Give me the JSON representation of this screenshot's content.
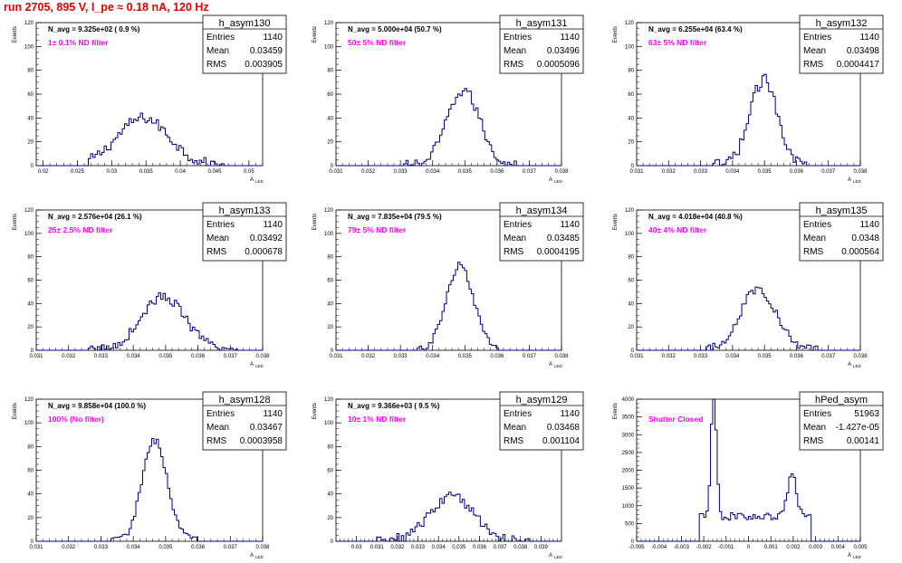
{
  "page": {
    "title": "run 2705,   895 V, I_pe ≈ 0.18 nA, 120 Hz"
  },
  "stat_labels": {
    "entries": "Entries",
    "mean": "Mean",
    "rms": "RMS"
  },
  "chart_data": [
    {
      "type": "histogram",
      "name": "h_asym130",
      "ylabel": "Events",
      "xlabel": "A",
      "xlabel_sub": "LED",
      "xlim": [
        0.019,
        0.052
      ],
      "ylim": [
        0,
        120
      ],
      "xticks": [
        "0.02",
        "0.025",
        "0.03",
        "0.035",
        "0.04",
        "0.045",
        "0.05"
      ],
      "yticks": [
        "0",
        "20",
        "40",
        "60",
        "80",
        "100",
        "120"
      ],
      "annotation": "N_avg = 9.325e+02 ( 0.9 %)",
      "filter": "1± 0.1% ND filter",
      "stats": {
        "entries": "1140",
        "mean": "0.03459",
        "rms": "0.003905"
      },
      "mean": 0.0346,
      "sigma": 0.0038,
      "peak": 40,
      "wobble": 9,
      "xmin": 0.0265,
      "xmax": 0.0465
    },
    {
      "type": "histogram",
      "name": "h_asym131",
      "ylabel": "Events",
      "xlabel": "A",
      "xlabel_sub": "LED",
      "xlim": [
        0.031,
        0.038
      ],
      "ylim": [
        0,
        120
      ],
      "xticks": [
        "0.031",
        "0.032",
        "0.033",
        "0.034",
        "0.035",
        "0.036",
        "0.037",
        "0.038"
      ],
      "yticks": [
        "0",
        "20",
        "40",
        "60",
        "80",
        "100",
        "120"
      ],
      "annotation": "N_avg = 5.000e+04 (50.7 %)",
      "filter": "50± 5% ND filter",
      "stats": {
        "entries": "1140",
        "mean": "0.03496",
        "rms": "0.0005096"
      },
      "mean": 0.03496,
      "sigma": 0.00051,
      "peak": 63,
      "wobble": 9,
      "xmin": 0.0331,
      "xmax": 0.0368
    },
    {
      "type": "histogram",
      "name": "h_asym132",
      "ylabel": "Events",
      "xlabel": "A",
      "xlabel_sub": "LED",
      "xlim": [
        0.031,
        0.038
      ],
      "ylim": [
        0,
        120
      ],
      "xticks": [
        "0.031",
        "0.032",
        "0.033",
        "0.034",
        "0.035",
        "0.036",
        "0.037",
        "0.038"
      ],
      "yticks": [
        "0",
        "20",
        "40",
        "60",
        "80",
        "100",
        "120"
      ],
      "annotation": "N_avg = 6.255e+04 (63.4 %)",
      "filter": "63± 5% ND filter",
      "stats": {
        "entries": "1140",
        "mean": "0.03498",
        "rms": "0.0004417"
      },
      "mean": 0.03498,
      "sigma": 0.00044,
      "peak": 72,
      "wobble": 10,
      "xmin": 0.0334,
      "xmax": 0.0366
    },
    {
      "type": "histogram",
      "name": "h_asym133",
      "ylabel": "Events",
      "xlabel": "A",
      "xlabel_sub": "LED",
      "xlim": [
        0.031,
        0.038
      ],
      "ylim": [
        0,
        120
      ],
      "xticks": [
        "0.031",
        "0.032",
        "0.033",
        "0.034",
        "0.035",
        "0.036",
        "0.037",
        "0.038"
      ],
      "yticks": [
        "0",
        "20",
        "40",
        "60",
        "80",
        "100",
        "120"
      ],
      "annotation": "N_avg = 2.576e+04 (26.1 %)",
      "filter": "25± 2.5% ND filter",
      "stats": {
        "entries": "1140",
        "mean": "0.03492",
        "rms": "0.000678"
      },
      "mean": 0.03492,
      "sigma": 0.00068,
      "peak": 46,
      "wobble": 8,
      "xmin": 0.0326,
      "xmax": 0.0372
    },
    {
      "type": "histogram",
      "name": "h_asym134",
      "ylabel": "Events",
      "xlabel": "A",
      "xlabel_sub": "LED",
      "xlim": [
        0.031,
        0.038
      ],
      "ylim": [
        0,
        120
      ],
      "xticks": [
        "0.031",
        "0.032",
        "0.033",
        "0.034",
        "0.035",
        "0.036",
        "0.037",
        "0.038"
      ],
      "yticks": [
        "0",
        "20",
        "40",
        "60",
        "80",
        "100",
        "120"
      ],
      "annotation": "N_avg = 7.835e+04 (79.5 %)",
      "filter": "79± 5% ND filter",
      "stats": {
        "entries": "1140",
        "mean": "0.03485",
        "rms": "0.0004195"
      },
      "mean": 0.03485,
      "sigma": 0.00042,
      "peak": 73,
      "wobble": 6,
      "xmin": 0.0335,
      "xmax": 0.0362
    },
    {
      "type": "histogram",
      "name": "h_asym135",
      "ylabel": "Events",
      "xlabel": "A",
      "xlabel_sub": "LED",
      "xlim": [
        0.031,
        0.038
      ],
      "ylim": [
        0,
        120
      ],
      "xticks": [
        "0.031",
        "0.032",
        "0.033",
        "0.034",
        "0.035",
        "0.036",
        "0.037",
        "0.038"
      ],
      "yticks": [
        "0",
        "20",
        "40",
        "60",
        "80",
        "100",
        "120"
      ],
      "annotation": "N_avg = 4.018e+04 (40.8 %)",
      "filter": "40± 4% ND filter",
      "stats": {
        "entries": "1140",
        "mean": "0.0348",
        "rms": "0.000564"
      },
      "mean": 0.0348,
      "sigma": 0.00056,
      "peak": 53,
      "wobble": 8,
      "xmin": 0.0332,
      "xmax": 0.0368
    },
    {
      "type": "histogram",
      "name": "h_asym128",
      "ylabel": "Events",
      "xlabel": "A",
      "xlabel_sub": "LED",
      "xlim": [
        0.031,
        0.038
      ],
      "ylim": [
        0,
        120
      ],
      "xticks": [
        "0.031",
        "0.032",
        "0.033",
        "0.034",
        "0.035",
        "0.036",
        "0.037",
        "0.038"
      ],
      "yticks": [
        "0",
        "20",
        "40",
        "60",
        "80",
        "100",
        "120"
      ],
      "annotation": "N_avg = 9.858e+04 (100.0 %)",
      "filter": "100% (No filter)",
      "stats": {
        "entries": "1140",
        "mean": "0.03467",
        "rms": "0.0003958"
      },
      "mean": 0.03467,
      "sigma": 0.00039,
      "peak": 85,
      "wobble": 7,
      "xmin": 0.0333,
      "xmax": 0.036
    },
    {
      "type": "histogram",
      "name": "h_asym129",
      "ylabel": "Events",
      "xlabel": "A",
      "xlabel_sub": "LED",
      "xlim": [
        0.029,
        0.04
      ],
      "ylim": [
        0,
        120
      ],
      "xticks": [
        "0.03",
        "0.031",
        "0.032",
        "0.033",
        "0.034",
        "0.035",
        "0.036",
        "0.037",
        "0.038",
        "0.039"
      ],
      "yticks": [
        "0",
        "20",
        "40",
        "60",
        "80",
        "100",
        "120"
      ],
      "annotation": "N_avg = 9.366e+03 ( 9.5 %)",
      "filter": "10± 1% ND filter",
      "stats": {
        "entries": "1140",
        "mean": "0.03468",
        "rms": "0.001104"
      },
      "mean": 0.03468,
      "sigma": 0.0011,
      "peak": 38,
      "wobble": 9,
      "xmin": 0.031,
      "xmax": 0.0385
    },
    {
      "type": "histogram",
      "name": "hPed_asym",
      "ylabel": "Events",
      "xlabel": "A",
      "xlabel_sub": "LED",
      "xlim": [
        -0.005,
        0.005
      ],
      "ylim": [
        0,
        4000
      ],
      "xticks": [
        "-0.005",
        "-0.004",
        "-0.003",
        "-0.002",
        "-0.001",
        "0",
        "0.001",
        "0.002",
        "0.003",
        "0.004",
        "0.005"
      ],
      "yticks": [
        "0",
        "500",
        "1000",
        "1500",
        "2000",
        "2500",
        "3000",
        "3500",
        "4000"
      ],
      "annotation": "",
      "filter": "Shutter Closed",
      "stats": {
        "entries": "51963",
        "mean": "-1.427e-05",
        "rms": "0.00141"
      },
      "shape": "pedestal",
      "components": [
        {
          "mean": -0.00155,
          "sigma": 0.00012,
          "peak": 3550
        },
        {
          "mean": 0.00195,
          "sigma": 0.0002,
          "peak": 1150
        }
      ],
      "plateau": 700,
      "xmin": -0.0022,
      "xmax": 0.0028
    }
  ]
}
